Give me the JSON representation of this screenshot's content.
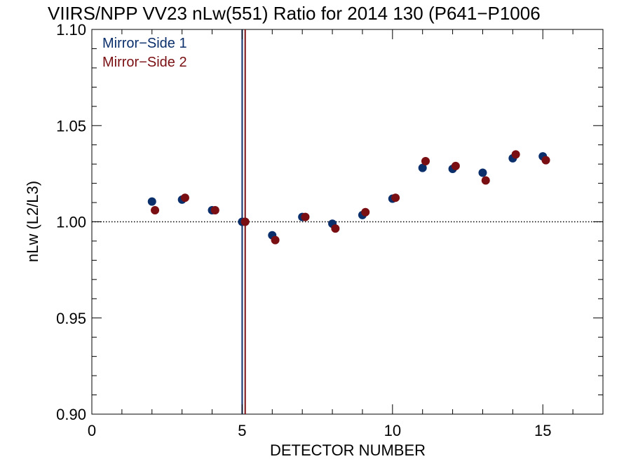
{
  "chart_data": {
    "type": "scatter",
    "title": "VIIRS/NPP VV23 nLw(551) Ratio for 2014 130 (P641−P1006",
    "xlabel": "DETECTOR NUMBER",
    "ylabel": "nLw (L2/L3)",
    "xlim": [
      0,
      17
    ],
    "ylim": [
      0.9,
      1.1
    ],
    "x_ticks": [
      0,
      5,
      10,
      15
    ],
    "x_tick_labels": [
      "0",
      "5",
      "10",
      "15"
    ],
    "y_ticks": [
      0.9,
      0.95,
      1.0,
      1.05,
      1.1
    ],
    "y_tick_labels": [
      "0.90",
      "0.95",
      "1.00",
      "1.05",
      "1.10"
    ],
    "reference_line": {
      "y": 1.0,
      "style": "dotted"
    },
    "vertical_lines": [
      {
        "x": 5,
        "color": "#0b2f6b"
      },
      {
        "x": 5.1,
        "color": "#7a0f13"
      }
    ],
    "legend_position": "top-left",
    "grid": false,
    "series": [
      {
        "name": "Mirror−Side 1",
        "color": "#0b2f6b",
        "x": [
          2,
          3,
          4,
          5,
          6,
          7,
          8,
          9,
          10,
          11,
          12,
          13,
          14,
          15
        ],
        "y": [
          1.0105,
          1.0115,
          1.006,
          1.0,
          0.993,
          1.0025,
          0.999,
          1.0035,
          1.012,
          1.028,
          1.0275,
          1.0255,
          1.033,
          1.034
        ]
      },
      {
        "name": "Mirror−Side 2",
        "color": "#7a0f13",
        "x": [
          2.1,
          3.1,
          4.1,
          5.1,
          6.1,
          7.1,
          8.1,
          9.1,
          10.1,
          11.1,
          12.1,
          13.1,
          14.1,
          15.1
        ],
        "y": [
          1.006,
          1.0125,
          1.006,
          1.0,
          0.9905,
          1.0025,
          0.9965,
          1.005,
          1.0125,
          1.0315,
          1.029,
          1.0215,
          1.035,
          1.032
        ]
      }
    ]
  }
}
